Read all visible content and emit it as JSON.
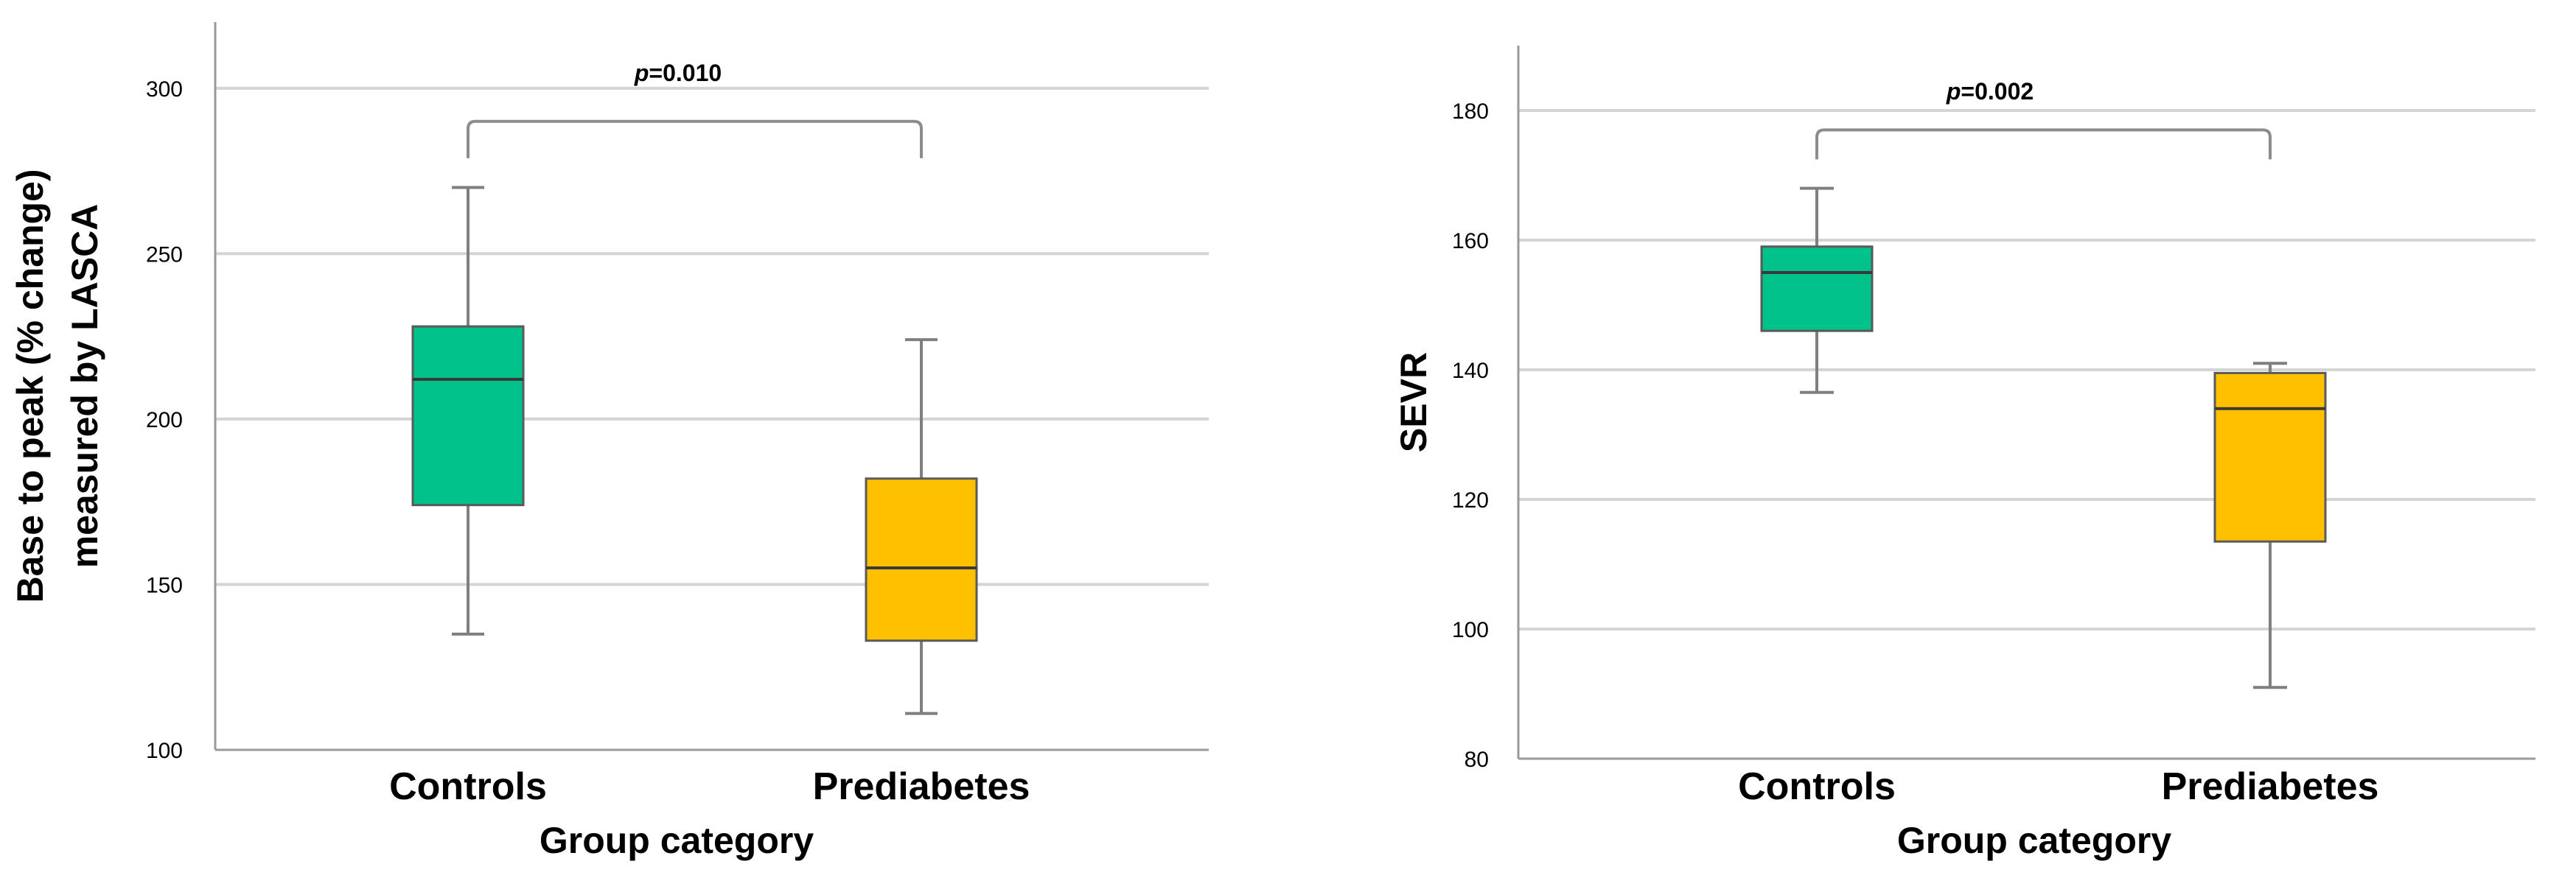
{
  "chart_data": [
    {
      "type": "boxplot",
      "xlabel": "Group category",
      "ylabel_lines": [
        "Base to peak (% change)",
        "measured by LASCA"
      ],
      "ylim": [
        100,
        320
      ],
      "yticks": [
        100,
        150,
        200,
        250,
        300
      ],
      "grid": true,
      "categories": [
        "Controls",
        "Prediabetes"
      ],
      "boxes": [
        {
          "name": "Controls",
          "whisker_low": 135,
          "q1": 174,
          "median": 212,
          "q3": 228,
          "whisker_high": 270,
          "color": "#00c28a"
        },
        {
          "name": "Prediabetes",
          "whisker_low": 111,
          "q1": 133,
          "median": 155,
          "q3": 182,
          "whisker_high": 224,
          "color": "#ffc000"
        }
      ],
      "annotation": {
        "p_label": "p",
        "p_value": "=0.010",
        "bracket_y": 290
      }
    },
    {
      "type": "boxplot",
      "xlabel": "Group category",
      "ylabel_lines": [
        "SEVR"
      ],
      "ylim": [
        80,
        190
      ],
      "yticks": [
        80,
        100,
        120,
        140,
        160,
        180
      ],
      "grid": true,
      "categories": [
        "Controls",
        "Prediabetes"
      ],
      "boxes": [
        {
          "name": "Controls",
          "whisker_low": 136.5,
          "q1": 146,
          "median": 155,
          "q3": 159,
          "whisker_high": 168,
          "color": "#00c28a"
        },
        {
          "name": "Prediabetes",
          "whisker_low": 91,
          "q1": 113.5,
          "median": 134,
          "q3": 139.5,
          "whisker_high": 141,
          "color": "#ffc000"
        }
      ],
      "annotation": {
        "p_label": "p",
        "p_value": "=0.002",
        "bracket_y": 177
      }
    }
  ]
}
